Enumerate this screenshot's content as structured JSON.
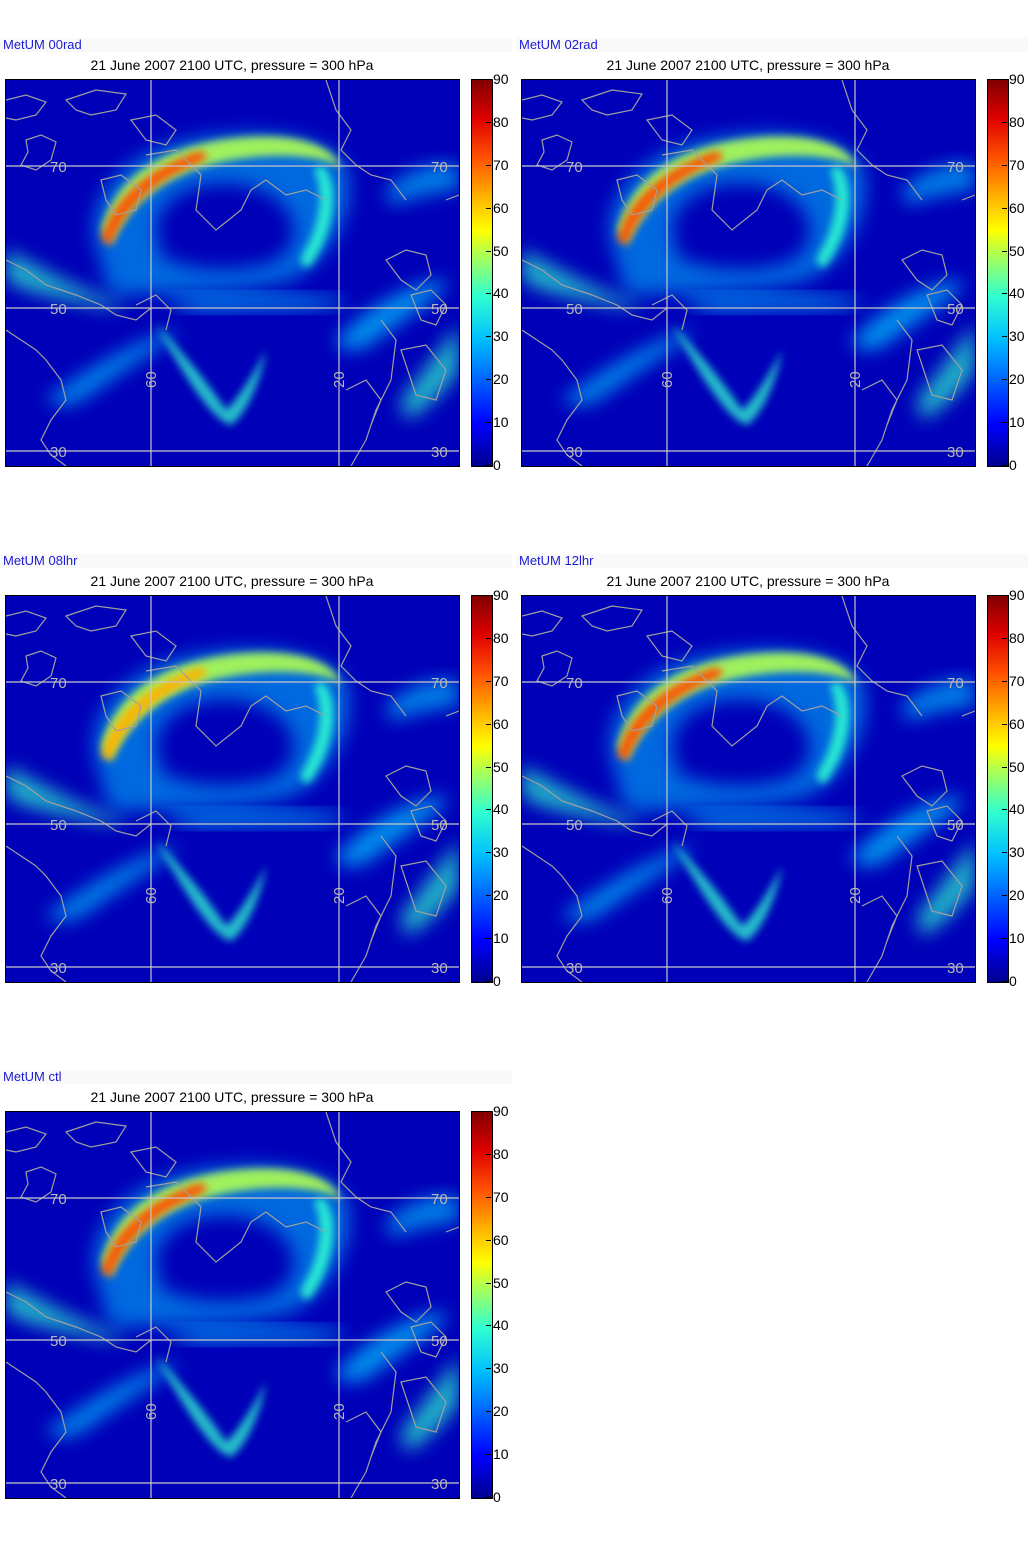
{
  "colors": {
    "model_label": "#1b1bd6",
    "grid": "#c8c8c8",
    "coast": "#a0a0a0"
  },
  "colorbar": {
    "ticks": [
      "90",
      "80",
      "70",
      "60",
      "50",
      "40",
      "30",
      "20",
      "10",
      "0"
    ]
  },
  "grid_labels": {
    "lat_70": "70",
    "lat_50": "50",
    "lat_30": "30",
    "lon_60": "60",
    "lon_20": "20"
  },
  "panels": [
    {
      "model": "MetUM 00rad",
      "title": "21 June 2007 2100 UTC, pressure = 300 hPa",
      "jet_max": 75
    },
    {
      "model": "MetUM 02rad",
      "title": "21 June 2007 2100 UTC, pressure = 300 hPa",
      "jet_max": 75
    },
    {
      "model": "MetUM 08lhr",
      "title": "21 June 2007 2100 UTC, pressure = 300 hPa",
      "jet_max": 68
    },
    {
      "model": "MetUM 12lhr",
      "title": "21 June 2007 2100 UTC, pressure = 300 hPa",
      "jet_max": 80
    },
    {
      "model": "MetUM ctl",
      "title": "21 June 2007 2100 UTC, pressure = 300 hPa",
      "jet_max": 74
    }
  ]
}
